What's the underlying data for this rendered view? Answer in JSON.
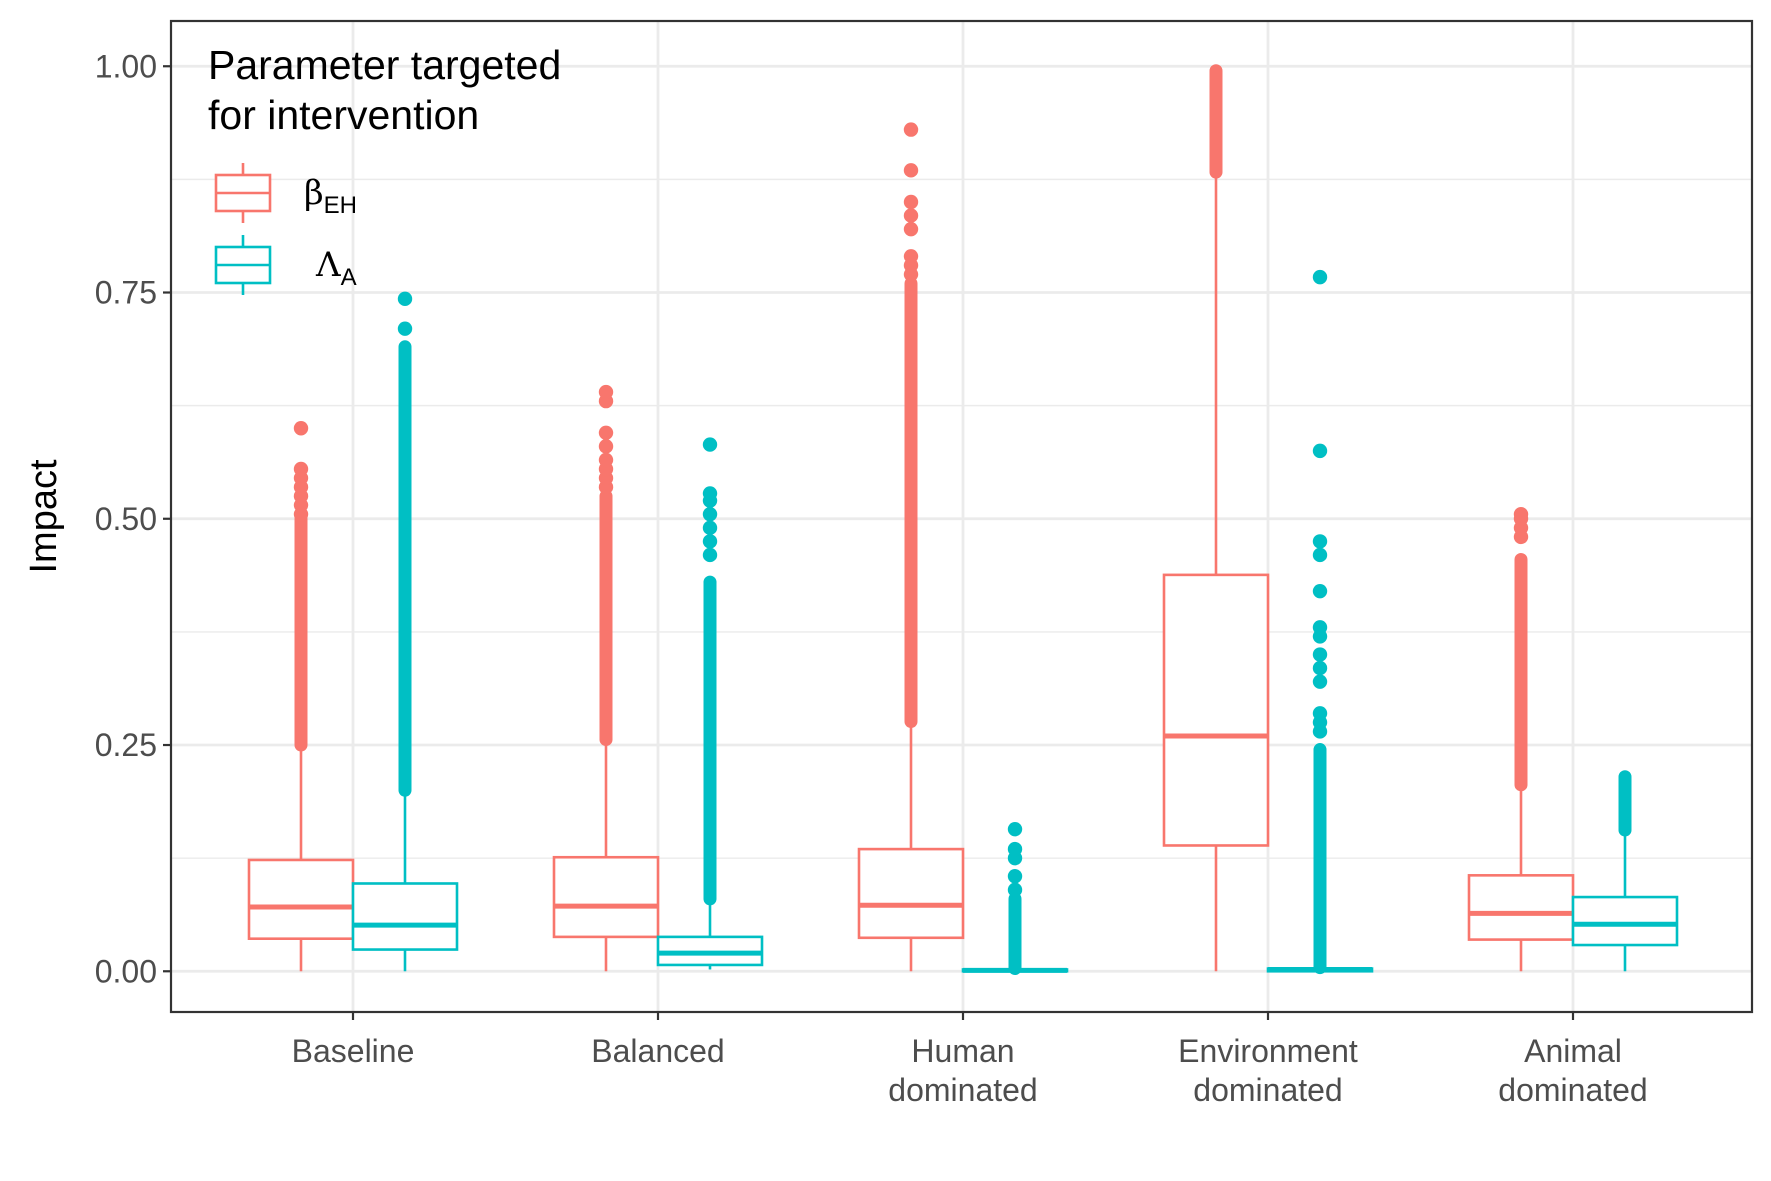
{
  "chart_data": {
    "type": "box",
    "ylabel": "Impact",
    "ylim": [
      -0.045,
      1.05
    ],
    "y_ticks": [
      0.0,
      0.25,
      0.5,
      0.75,
      1.0
    ],
    "y_tick_labels": [
      "0.00",
      "0.25",
      "0.50",
      "0.75",
      "1.00"
    ],
    "categories": [
      {
        "lines": [
          "Baseline"
        ]
      },
      {
        "lines": [
          "Balanced"
        ]
      },
      {
        "lines": [
          "Human",
          "dominated"
        ]
      },
      {
        "lines": [
          "Environment",
          "dominated"
        ]
      },
      {
        "lines": [
          "Animal",
          "dominated"
        ]
      }
    ],
    "legend": {
      "position": "top-left",
      "title_lines": [
        "Parameter targeted",
        "for intervention"
      ]
    },
    "grid": true,
    "series": [
      {
        "symbol": "β",
        "subscript": "EH",
        "color": "#F8766D",
        "boxes": [
          {
            "min": 0.0,
            "q1": 0.036,
            "median": 0.071,
            "q3": 0.123,
            "whisker_high": 0.25,
            "outlier_band": [
              0.25,
              0.5
            ],
            "outliers": [
              0.505,
              0.515,
              0.525,
              0.535,
              0.545,
              0.555,
              0.6
            ]
          },
          {
            "min": 0.0,
            "q1": 0.038,
            "median": 0.072,
            "q3": 0.126,
            "whisker_high": 0.256,
            "outlier_band": [
              0.256,
              0.525
            ],
            "outliers": [
              0.535,
              0.545,
              0.555,
              0.565,
              0.58,
              0.595,
              0.63,
              0.64
            ]
          },
          {
            "min": 0.0,
            "q1": 0.037,
            "median": 0.073,
            "q3": 0.135,
            "whisker_high": 0.276,
            "outlier_band": [
              0.276,
              0.76
            ],
            "outliers": [
              0.77,
              0.78,
              0.79,
              0.82,
              0.835,
              0.85,
              0.885,
              0.93
            ]
          },
          {
            "min": 0.0,
            "q1": 0.139,
            "median": 0.26,
            "q3": 0.438,
            "whisker_high": 0.883,
            "outlier_band": [
              0.883,
              0.995
            ],
            "outliers": []
          },
          {
            "min": 0.0,
            "q1": 0.035,
            "median": 0.064,
            "q3": 0.106,
            "whisker_high": 0.206,
            "outlier_band": [
              0.206,
              0.455
            ],
            "outliers": [
              0.48,
              0.49,
              0.5,
              0.505
            ]
          }
        ]
      },
      {
        "symbol": "Λ",
        "subscript": "A",
        "color": "#00BFC4",
        "boxes": [
          {
            "min": 0.0,
            "q1": 0.024,
            "median": 0.051,
            "q3": 0.097,
            "whisker_high": 0.2,
            "outlier_band": [
              0.2,
              0.69
            ],
            "outliers": [
              0.71,
              0.743
            ]
          },
          {
            "min": 0.002,
            "q1": 0.007,
            "median": 0.02,
            "q3": 0.038,
            "whisker_high": 0.08,
            "outlier_band": [
              0.08,
              0.43
            ],
            "outliers": [
              0.46,
              0.475,
              0.49,
              0.505,
              0.52,
              0.528,
              0.582
            ]
          },
          {
            "min": 0.0,
            "q1": 0.0,
            "median": 0.001,
            "q3": 0.002,
            "whisker_high": 0.003,
            "outlier_band": [
              0.003,
              0.08
            ],
            "outliers": [
              0.09,
              0.105,
              0.125,
              0.135,
              0.157
            ]
          },
          {
            "min": 0.0,
            "q1": 0.0,
            "median": 0.002,
            "q3": 0.003,
            "whisker_high": 0.004,
            "outlier_band": [
              0.004,
              0.245
            ],
            "outliers": [
              0.265,
              0.275,
              0.285,
              0.32,
              0.335,
              0.35,
              0.37,
              0.38,
              0.42,
              0.46,
              0.475,
              0.575,
              0.767
            ]
          },
          {
            "min": 0.0,
            "q1": 0.029,
            "median": 0.052,
            "q3": 0.082,
            "whisker_high": 0.156,
            "outlier_band": [
              0.156,
              0.215
            ],
            "outliers": []
          }
        ]
      }
    ]
  }
}
